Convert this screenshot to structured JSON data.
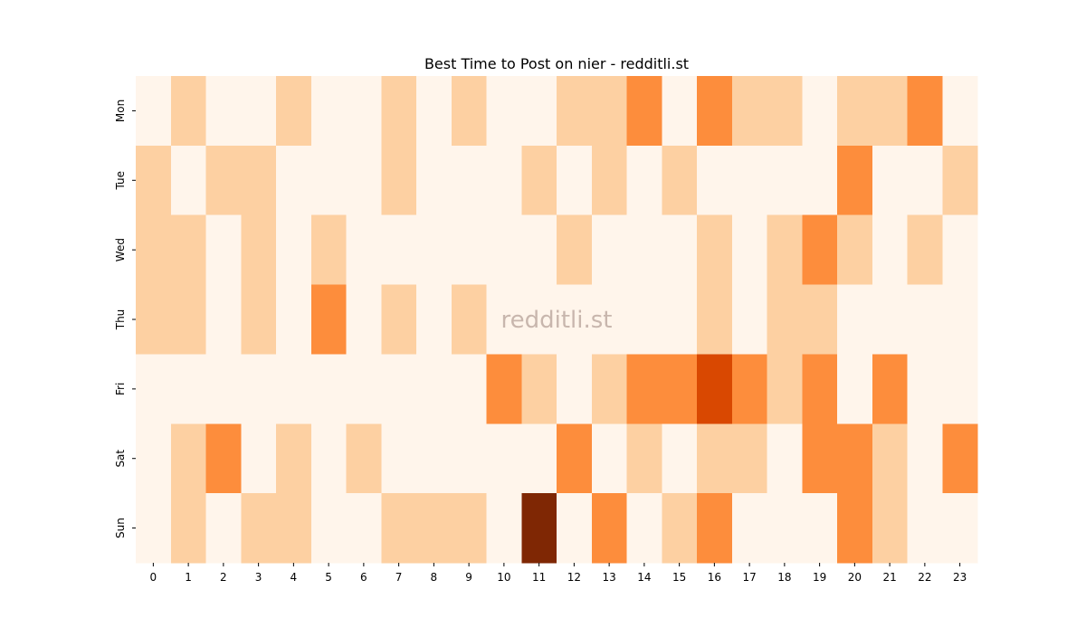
{
  "chart_data": {
    "type": "heatmap",
    "title": "Best Time to Post on nier - redditli.st",
    "watermark": "redditli.st",
    "x": [
      0,
      1,
      2,
      3,
      4,
      5,
      6,
      7,
      8,
      9,
      10,
      11,
      12,
      13,
      14,
      15,
      16,
      17,
      18,
      19,
      20,
      21,
      22,
      23
    ],
    "y": [
      "Mon",
      "Tue",
      "Wed",
      "Thu",
      "Fri",
      "Sat",
      "Sun"
    ],
    "values": [
      [
        0,
        1,
        0,
        0,
        1,
        0,
        0,
        1,
        0,
        1,
        0,
        0,
        1,
        1,
        2,
        0,
        2,
        1,
        1,
        0,
        1,
        1,
        2,
        0
      ],
      [
        1,
        0,
        1,
        1,
        0,
        0,
        0,
        1,
        0,
        0,
        0,
        1,
        0,
        1,
        0,
        1,
        0,
        0,
        0,
        0,
        2,
        0,
        0,
        1
      ],
      [
        1,
        1,
        0,
        1,
        0,
        1,
        0,
        0,
        0,
        0,
        0,
        0,
        1,
        0,
        0,
        0,
        1,
        0,
        1,
        2,
        1,
        0,
        1,
        0
      ],
      [
        1,
        1,
        0,
        1,
        0,
        2,
        0,
        1,
        0,
        1,
        0,
        0,
        0,
        0,
        0,
        0,
        1,
        0,
        1,
        1,
        0,
        0,
        0,
        0
      ],
      [
        0,
        0,
        0,
        0,
        0,
        0,
        0,
        0,
        0,
        0,
        2,
        1,
        0,
        1,
        2,
        2,
        3,
        2,
        1,
        2,
        0,
        2,
        0,
        0
      ],
      [
        0,
        1,
        2,
        0,
        1,
        0,
        1,
        0,
        0,
        0,
        0,
        0,
        2,
        0,
        1,
        0,
        1,
        1,
        0,
        2,
        2,
        1,
        0,
        2
      ],
      [
        0,
        1,
        0,
        1,
        1,
        0,
        0,
        1,
        1,
        1,
        0,
        4,
        0,
        2,
        0,
        1,
        2,
        0,
        0,
        0,
        2,
        1,
        0,
        0
      ]
    ],
    "colormap": [
      "#fff5eb",
      "#fdd0a2",
      "#fd8d3c",
      "#d94801",
      "#7f2704"
    ]
  }
}
